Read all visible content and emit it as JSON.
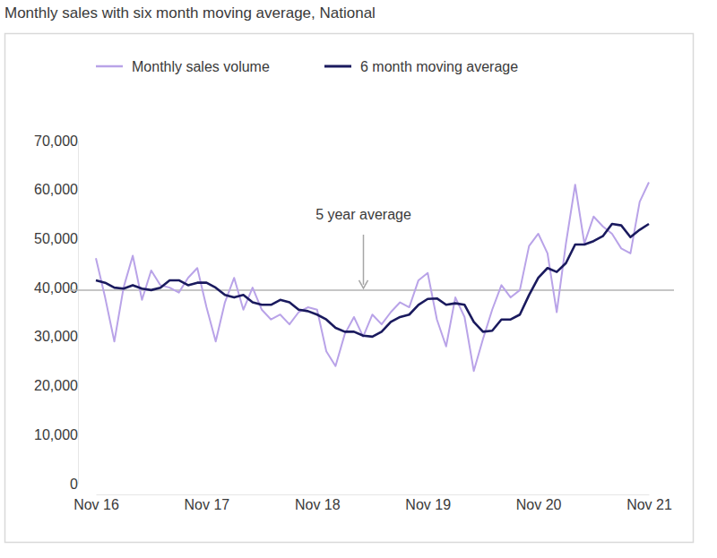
{
  "chart_data": {
    "type": "line",
    "title": "Monthly sales with six month moving average, National",
    "categories": [
      "Nov 16",
      null,
      null,
      null,
      null,
      null,
      null,
      null,
      null,
      null,
      null,
      null,
      "Nov 17",
      null,
      null,
      null,
      null,
      null,
      null,
      null,
      null,
      null,
      null,
      null,
      "Nov 18",
      null,
      null,
      null,
      null,
      null,
      null,
      null,
      null,
      null,
      null,
      null,
      "Nov 19",
      null,
      null,
      null,
      null,
      null,
      null,
      null,
      null,
      null,
      null,
      null,
      "Nov 20",
      null,
      null,
      null,
      null,
      null,
      null,
      null,
      null,
      null,
      null,
      null,
      "Nov 21"
    ],
    "series": [
      {
        "name": "Monthly sales volume",
        "color": "#b9a3e8",
        "values": [
          46000,
          38000,
          29000,
          40000,
          46500,
          37500,
          43500,
          40500,
          40000,
          39000,
          42000,
          44000,
          36000,
          29000,
          37000,
          42000,
          35500,
          40000,
          35500,
          33500,
          34500,
          32500,
          35000,
          36000,
          35500,
          27000,
          24000,
          30500,
          34000,
          30000,
          34500,
          32500,
          35000,
          37000,
          36000,
          41500,
          43000,
          33500,
          28000,
          38000,
          34000,
          23000,
          29500,
          35500,
          40500,
          38000,
          39500,
          48500,
          51000,
          47000,
          35000,
          49000,
          61000,
          49000,
          54500,
          52500,
          51000,
          48000,
          47000,
          57500,
          61500
        ]
      },
      {
        "name": "6 month moving average",
        "color": "#1a1a5e",
        "values": [
          41500,
          41000,
          40000,
          39800,
          40500,
          39800,
          39500,
          40000,
          41500,
          41500,
          40500,
          41000,
          41000,
          40000,
          38500,
          38000,
          38500,
          37000,
          36500,
          36500,
          37500,
          37000,
          35500,
          35200,
          34500,
          33500,
          31800,
          31000,
          31000,
          30200,
          30000,
          31000,
          33000,
          34000,
          34500,
          36500,
          37700,
          37800,
          36500,
          36800,
          36500,
          33000,
          31000,
          31200,
          33500,
          33500,
          34500,
          38500,
          42000,
          44000,
          43200,
          45000,
          48800,
          48800,
          49500,
          50500,
          53000,
          52700,
          50300,
          51800,
          53000
        ]
      }
    ],
    "reference_line": {
      "label": "5 year average",
      "value": 39500
    },
    "ylim": [
      0,
      70000
    ],
    "yticks": [
      0,
      {
        "value": 10000,
        "label": "10,000"
      },
      {
        "value": 20000,
        "label": "20,000"
      },
      {
        "value": 30000,
        "label": "30,000"
      },
      {
        "value": 40000,
        "label": "40,000"
      },
      {
        "value": 50000,
        "label": "50,000"
      },
      {
        "value": 60000,
        "label": "60,000"
      },
      {
        "value": 70000,
        "label": "70,000"
      }
    ],
    "grid": false,
    "legend": "top"
  }
}
